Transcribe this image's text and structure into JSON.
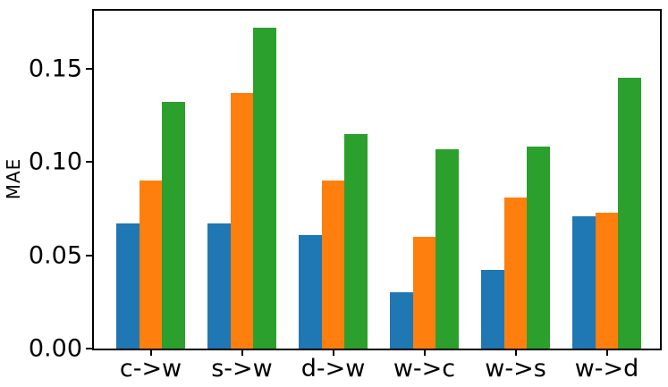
{
  "chart_data": {
    "type": "bar",
    "title": "",
    "xlabel": "",
    "ylabel": "MAE",
    "categories": [
      "c->w",
      "s->w",
      "d->w",
      "w->c",
      "w->s",
      "w->d"
    ],
    "series": [
      {
        "name": "blue",
        "color": "#1f77b4",
        "values": [
          0.067,
          0.067,
          0.061,
          0.03,
          0.042,
          0.071
        ]
      },
      {
        "name": "orange",
        "color": "#ff7f0e",
        "values": [
          0.09,
          0.137,
          0.09,
          0.06,
          0.081,
          0.073
        ]
      },
      {
        "name": "green",
        "color": "#2ca02c",
        "values": [
          0.132,
          0.172,
          0.115,
          0.107,
          0.108,
          0.145
        ]
      }
    ],
    "ylim": [
      0,
      0.181
    ],
    "yticks": [
      {
        "value": 0.0,
        "label": "0.00"
      },
      {
        "value": 0.05,
        "label": "0.05"
      },
      {
        "value": 0.1,
        "label": "0.10"
      },
      {
        "value": 0.15,
        "label": "0.15"
      }
    ],
    "grid": false,
    "legend": "none",
    "axis_color": "#000000",
    "background": "#ffffff"
  }
}
